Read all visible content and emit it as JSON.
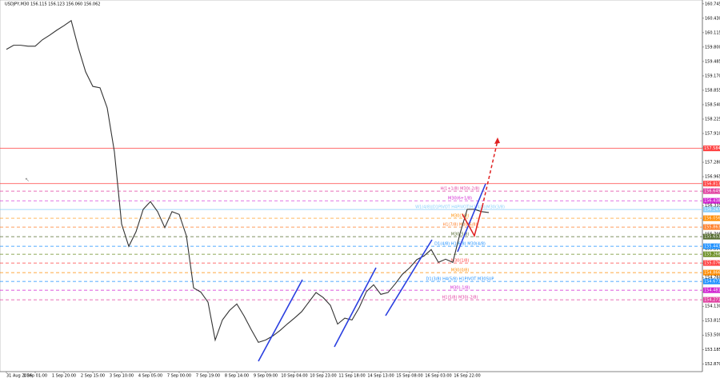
{
  "chart_data": {
    "type": "line",
    "title": "USDJPY,M30  156.115 156.123 156.060 156.062",
    "color": "#333333",
    "categories": [
      "31 Aug 2026",
      null,
      null,
      null,
      "1 Sep 01:00",
      null,
      null,
      null,
      "1 Sep 20:00",
      null,
      null,
      null,
      "2 Sep 15:00",
      null,
      null,
      null,
      "3 Sep 10:00",
      null,
      null,
      null,
      "4 Sep 05:00",
      null,
      null,
      null,
      "7 Sep 00:00",
      null,
      null,
      null,
      "7 Sep 19:00",
      null,
      null,
      null,
      "8 Sep 14:00",
      null,
      null,
      null,
      "9 Sep 09:00",
      null,
      null,
      null,
      "10 Sep 04:00",
      null,
      null,
      null,
      "10 Sep 23:00",
      null,
      null,
      null,
      "11 Sep 18:00",
      null,
      null,
      null,
      "14 Sep 13:00",
      null,
      null,
      null,
      "15 Sep 08:00",
      null,
      null,
      null,
      "16 Sep 03:00",
      null,
      null,
      null,
      "16 Sep 22:00",
      null,
      null,
      null
    ],
    "values": [
      159.75,
      159.84,
      159.84,
      159.82,
      159.82,
      159.96,
      160.06,
      160.17,
      160.27,
      160.38,
      159.78,
      159.26,
      158.94,
      158.91,
      158.47,
      157.51,
      155.93,
      155.44,
      155.76,
      156.25,
      156.42,
      156.2,
      155.85,
      156.2,
      156.14,
      155.67,
      154.53,
      154.44,
      154.22,
      153.39,
      153.83,
      154.04,
      154.18,
      153.92,
      153.62,
      153.34,
      153.39,
      153.48,
      153.6,
      153.74,
      153.87,
      154.01,
      154.22,
      154.43,
      154.32,
      154.15,
      153.74,
      153.87,
      153.83,
      154.1,
      154.45,
      154.6,
      154.39,
      154.43,
      154.62,
      154.83,
      154.97,
      155.15,
      155.23,
      155.37,
      155.09,
      155.16,
      155.09,
      155.72,
      156.25,
      156.25,
      156.2,
      156.18
    ],
    "ylim": [
      152.7,
      160.83
    ],
    "yticks": [
      160.745,
      {
        "value": 160.43,
        "label": "160.430"
      },
      160.115,
      {
        "value": 159.8,
        "label": "159.800"
      },
      159.485,
      {
        "value": 159.17,
        "label": "159.170"
      },
      158.855,
      {
        "value": 158.54,
        "label": "158.540"
      },
      158.225,
      {
        "value": 157.91,
        "label": "157.910"
      },
      157.595,
      {
        "value": 157.28,
        "label": "157.280"
      },
      156.965,
      {
        "value": 156.65,
        "label": "156.650"
      },
      156.335,
      {
        "value": 156.02,
        "label": "156.020"
      },
      155.705,
      {
        "value": 155.39,
        "label": "155.390"
      },
      155.075,
      {
        "value": 154.76,
        "label": "154.760"
      },
      154.445,
      {
        "value": 154.13,
        "label": "154.130"
      },
      153.815,
      {
        "value": 153.5,
        "label": "153.500"
      },
      153.185,
      {
        "value": 152.87,
        "label": "152.870"
      }
    ],
    "grid": false,
    "levels": [
      {
        "price": 157.584,
        "color": "#ff4040",
        "dashed": false
      },
      {
        "price": 156.813,
        "color": "#ff4040",
        "dashed": false
      },
      {
        "price": 156.649,
        "color": "#e040a0",
        "dashed": true,
        "label": "H(1+1/8) M30(-2/8)"
      },
      {
        "price": 156.438,
        "color": "#d020d0",
        "dashed": true,
        "label": "M30(6+1/8)"
      },
      {
        "price": 156.247,
        "color": "#87cefa",
        "dashed": false,
        "label": "W1(4/8)|D1PIVOT H4PIVOT|H1(4/8)|M30(3/8)"
      },
      {
        "price": 156.056,
        "color": "#ff8c00",
        "dashed": true,
        "label": "M30(7/8)"
      },
      {
        "price": 155.863,
        "color": "#ff7f2a",
        "dashed": true,
        "label": "H1(7/8) M30(6/8)"
      },
      {
        "price": 155.653,
        "color": "#556b2f",
        "dashed": true,
        "label": "M30(5/8)"
      },
      {
        "price": 155.443,
        "color": "#1e90ff",
        "dashed": true,
        "label": "D1(4/8) H1(6/8) M30(4/8)"
      },
      {
        "price": 155.268,
        "color": "#6b8e23",
        "dashed": true
      },
      {
        "price": 155.076,
        "color": "#ff4040",
        "dashed": true,
        "label": "M30(1/8)"
      },
      {
        "price": 154.866,
        "color": "#ff8c00",
        "dashed": true,
        "label": "M30(0/8)"
      },
      {
        "price": 154.673,
        "color": "#1e90ff",
        "dashed": true,
        "label": "D1(3/8) H4(5/8) H1PIVOT M30SUP"
      },
      {
        "price": 154.481,
        "color": "#d020d0",
        "dashed": true,
        "label": "M30(-1/8)"
      },
      {
        "price": 154.271,
        "color": "#e040a0",
        "dashed": true,
        "label": "H1(5/8) M30(-2/8)"
      }
    ]
  }
}
